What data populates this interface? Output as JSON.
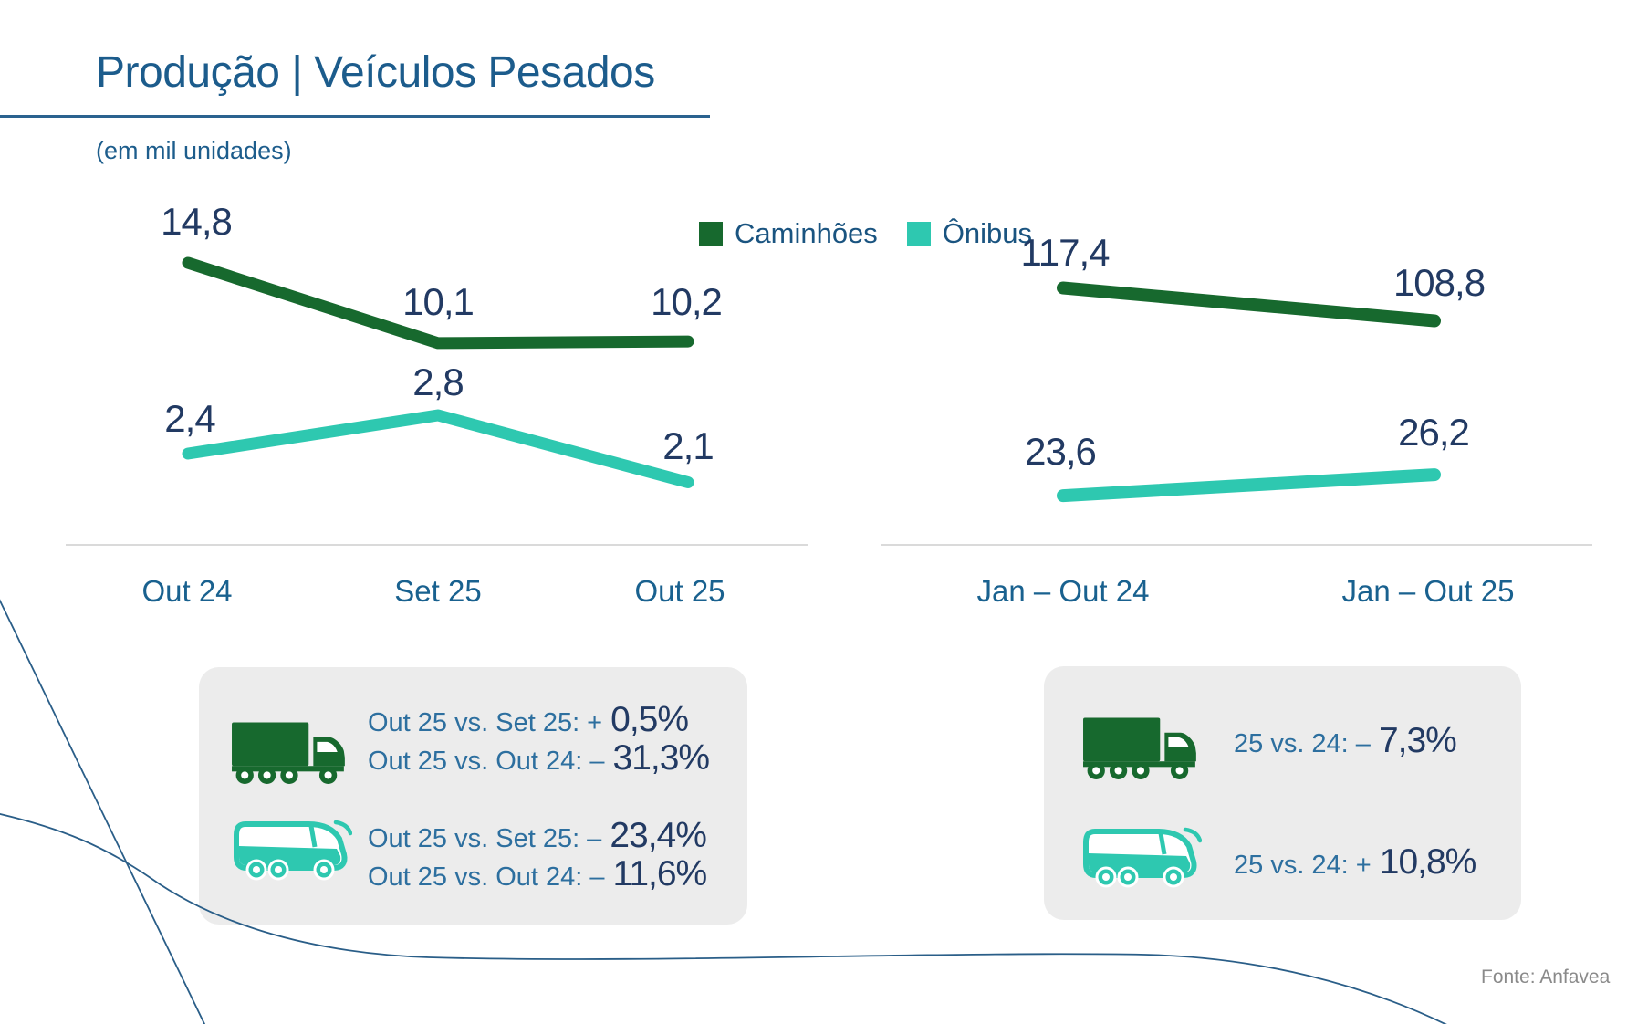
{
  "page": {
    "title": "Produção | Veículos Pesados",
    "subtitle": "(em mil unidades)",
    "source": "Fonte: Anfavea"
  },
  "legend": {
    "items": [
      {
        "label": "Caminhões",
        "color": "#17692e",
        "icon": "truck-swatch"
      },
      {
        "label": "Ônibus",
        "color": "#2ec8b0",
        "icon": "bus-swatch"
      }
    ],
    "position": "top"
  },
  "colors": {
    "truck_green": "#17692e",
    "bus_teal": "#2ec8b0",
    "heading_blue": "#1c5c8c",
    "value_navy": "#223a63",
    "annotation_blue": "#2d6f9f",
    "box_gray": "#ececec",
    "axis_gray": "#dadada",
    "source_gray": "#8a8a8a",
    "decorative_line_blue": "#2a5e88"
  },
  "chart_data": [
    {
      "type": "line",
      "categories": [
        "Out 24",
        "Set 25",
        "Out 25"
      ],
      "series": [
        {
          "name": "Caminhões",
          "color": "#17692e",
          "values": [
            14.8,
            10.1,
            10.2
          ],
          "labels": [
            "14,8",
            "10,1",
            "10,2"
          ]
        },
        {
          "name": "Ônibus",
          "color": "#2ec8b0",
          "values": [
            2.4,
            2.8,
            2.1
          ],
          "labels": [
            "2,4",
            "2,8",
            "2,1"
          ]
        }
      ],
      "unit": "mil unidades",
      "grid": false,
      "legend_position": "top",
      "data_labels": true
    },
    {
      "type": "line",
      "categories": [
        "Jan – Out 24",
        "Jan – Out 25"
      ],
      "series": [
        {
          "name": "Caminhões",
          "color": "#17692e",
          "values": [
            117.4,
            108.8
          ],
          "labels": [
            "117,4",
            "108,8"
          ]
        },
        {
          "name": "Ônibus",
          "color": "#2ec8b0",
          "values": [
            23.6,
            26.2
          ],
          "labels": [
            "23,6",
            "26,2"
          ]
        }
      ],
      "unit": "mil unidades",
      "grid": false,
      "data_labels": true
    }
  ],
  "annotations": {
    "monthly": {
      "truck": [
        {
          "prefix": "Out 25 vs. Set 25: +",
          "value": "0,5%"
        },
        {
          "prefix": "Out 25 vs. Out 24: –",
          "value": "31,3%"
        }
      ],
      "bus": [
        {
          "prefix": "Out 25 vs. Set 25: –",
          "value": "23,4%"
        },
        {
          "prefix": "Out 25 vs. Out 24: –",
          "value": "11,6%"
        }
      ]
    },
    "ytd": {
      "truck": [
        {
          "prefix": "25 vs. 24: –",
          "value": "7,3%"
        }
      ],
      "bus": [
        {
          "prefix": "25 vs. 24: +",
          "value": "10,8%"
        }
      ]
    }
  }
}
